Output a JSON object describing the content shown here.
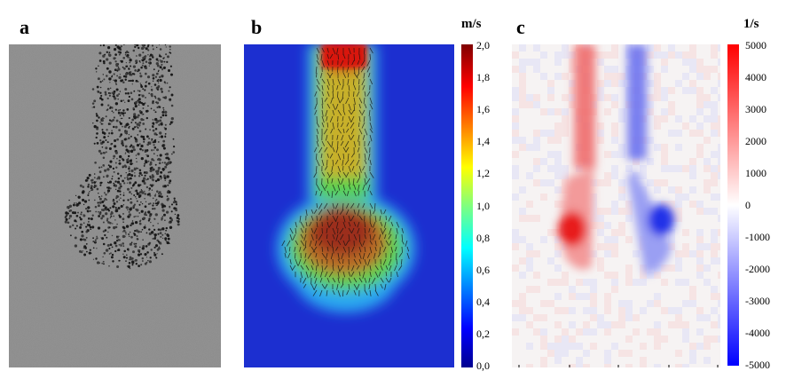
{
  "panels": {
    "a": {
      "label": "a"
    },
    "b": {
      "label": "b",
      "unit": "m/s",
      "colorbar_ticks": [
        "2,0",
        "1,8",
        "1,6",
        "1,4",
        "1,2",
        "1,0",
        "0,8",
        "0,6",
        "0,4",
        "0,2",
        "0,0"
      ]
    },
    "c": {
      "label": "c",
      "unit": "1/s",
      "colorbar_ticks": [
        "5000",
        "4000",
        "3000",
        "2000",
        "1000",
        "0",
        "-1000",
        "-2000",
        "-3000",
        "-4000",
        "-5000"
      ]
    }
  },
  "colors": {
    "jet_low": "#00008f",
    "jet_high": "#8f0000",
    "vorticity_pos": "#ff0000",
    "vorticity_neg": "#0000ff",
    "particle_bg": "#8d8d8d"
  }
}
